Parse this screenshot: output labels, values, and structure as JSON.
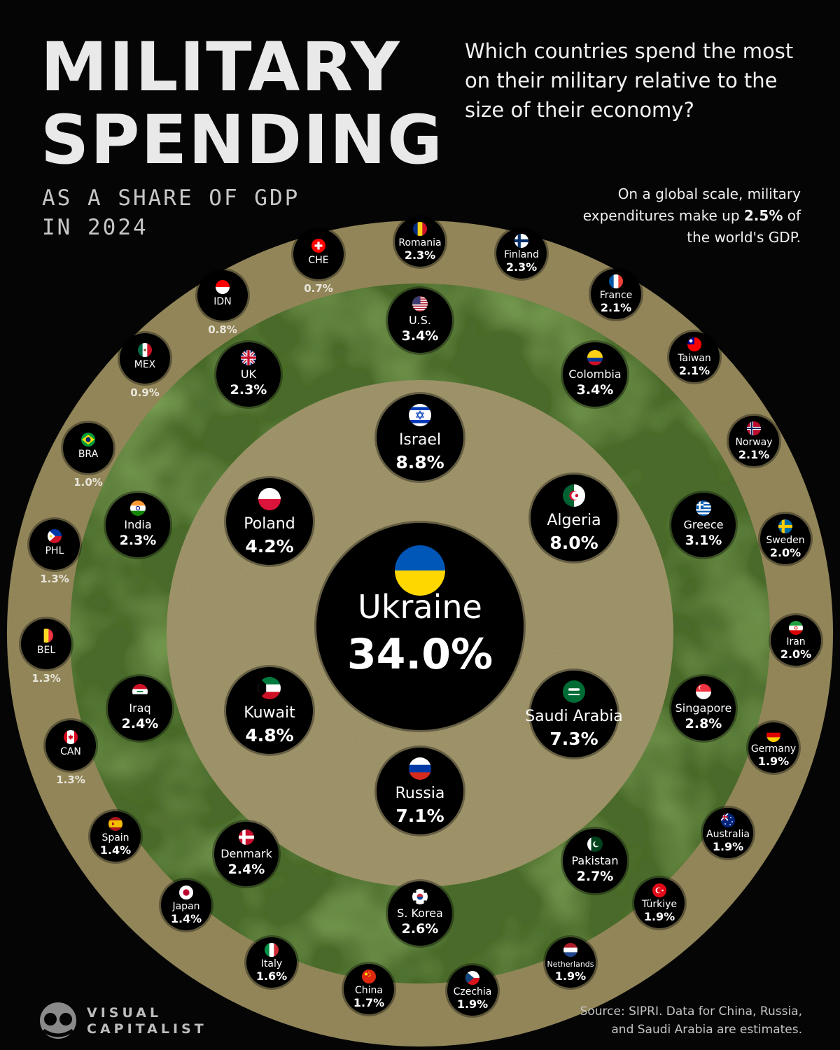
{
  "header": {
    "title_line1": "MILITARY",
    "title_line2": "SPENDING",
    "subtitle_line1": "AS A SHARE OF GDP",
    "subtitle_line2": "IN 2024",
    "question": "Which countries spend the most on their military relative to the size of their economy?",
    "note_prefix": "On a global scale, military expenditures make up",
    "note_value": "2.5%",
    "note_suffix": "of the world's GDP."
  },
  "footer": {
    "logo_line1": "VISUAL",
    "logo_line2": "CAPITALIST",
    "source_line1": "Source: SIPRI. Data for China, Russia,",
    "source_line2": "and Saudi Arabia are estimates."
  },
  "colors": {
    "background": "#050505",
    "outer_ring": "#9a8d5f",
    "middle_ring": "#4a6a2a",
    "inner_ring": "#a59a6e",
    "bubble": "#000000",
    "text": "#ffffff"
  },
  "chart_data": {
    "type": "bubble",
    "title": "MILITARY SPENDING AS A SHARE OF GDP IN 2024",
    "unit": "% of GDP",
    "global_average": 2.5,
    "rings": [
      "under 2.0%",
      "2.0% to 4.9%",
      "5% and above"
    ],
    "countries": [
      {
        "name": "Ukraine",
        "value": 34.0,
        "label": "34.0%",
        "tier": "center",
        "flag": "ukraine"
      },
      {
        "name": "Israel",
        "value": 8.8,
        "label": "8.8%",
        "tier": "inner",
        "flag": "israel"
      },
      {
        "name": "Algeria",
        "value": 8.0,
        "label": "8.0%",
        "tier": "inner",
        "flag": "algeria"
      },
      {
        "name": "Saudi Arabia",
        "value": 7.3,
        "label": "7.3%",
        "tier": "inner",
        "flag": "saudi"
      },
      {
        "name": "Russia",
        "value": 7.1,
        "label": "7.1%",
        "tier": "inner",
        "flag": "russia"
      },
      {
        "name": "Kuwait",
        "value": 4.8,
        "label": "4.8%",
        "tier": "inner",
        "flag": "kuwait"
      },
      {
        "name": "Poland",
        "value": 4.2,
        "label": "4.2%",
        "tier": "inner",
        "flag": "poland"
      },
      {
        "name": "U.S.",
        "value": 3.4,
        "label": "3.4%",
        "tier": "middle",
        "flag": "us"
      },
      {
        "name": "Colombia",
        "value": 3.4,
        "label": "3.4%",
        "tier": "middle",
        "flag": "colombia"
      },
      {
        "name": "Greece",
        "value": 3.1,
        "label": "3.1%",
        "tier": "middle",
        "flag": "greece"
      },
      {
        "name": "Singapore",
        "value": 2.8,
        "label": "2.8%",
        "tier": "middle",
        "flag": "singapore"
      },
      {
        "name": "Pakistan",
        "value": 2.7,
        "label": "2.7%",
        "tier": "middle",
        "flag": "pakistan"
      },
      {
        "name": "S. Korea",
        "value": 2.6,
        "label": "2.6%",
        "tier": "middle",
        "flag": "skorea"
      },
      {
        "name": "Denmark",
        "value": 2.4,
        "label": "2.4%",
        "tier": "middle",
        "flag": "denmark"
      },
      {
        "name": "Iraq",
        "value": 2.4,
        "label": "2.4%",
        "tier": "middle",
        "flag": "iraq"
      },
      {
        "name": "India",
        "value": 2.3,
        "label": "2.3%",
        "tier": "middle",
        "flag": "india"
      },
      {
        "name": "UK",
        "value": 2.3,
        "label": "2.3%",
        "tier": "middle",
        "flag": "uk"
      },
      {
        "name": "Romania",
        "value": 2.3,
        "label": "2.3%",
        "tier": "outer",
        "flag": "romania"
      },
      {
        "name": "Finland",
        "value": 2.3,
        "label": "2.3%",
        "tier": "outer",
        "flag": "finland"
      },
      {
        "name": "France",
        "value": 2.1,
        "label": "2.1%",
        "tier": "outer",
        "flag": "france"
      },
      {
        "name": "Taiwan",
        "value": 2.1,
        "label": "2.1%",
        "tier": "outer",
        "flag": "taiwan"
      },
      {
        "name": "Norway",
        "value": 2.1,
        "label": "2.1%",
        "tier": "outer",
        "flag": "norway"
      },
      {
        "name": "Sweden",
        "value": 2.0,
        "label": "2.0%",
        "tier": "outer",
        "flag": "sweden"
      },
      {
        "name": "Iran",
        "value": 2.0,
        "label": "2.0%",
        "tier": "outer",
        "flag": "iran"
      },
      {
        "name": "Germany",
        "value": 1.9,
        "label": "1.9%",
        "tier": "outer",
        "flag": "germany"
      },
      {
        "name": "Australia",
        "value": 1.9,
        "label": "1.9%",
        "tier": "outer",
        "flag": "australia"
      },
      {
        "name": "Türkiye",
        "value": 1.9,
        "label": "1.9%",
        "tier": "outer",
        "flag": "turkey"
      },
      {
        "name": "Netherlands",
        "value": 1.9,
        "label": "1.9%",
        "tier": "outer",
        "flag": "netherlands"
      },
      {
        "name": "Czechia",
        "value": 1.9,
        "label": "1.9%",
        "tier": "outer",
        "flag": "czechia"
      },
      {
        "name": "China",
        "value": 1.7,
        "label": "1.7%",
        "tier": "outer",
        "flag": "china"
      },
      {
        "name": "Italy",
        "value": 1.6,
        "label": "1.6%",
        "tier": "outer",
        "flag": "italy"
      },
      {
        "name": "Japan",
        "value": 1.4,
        "label": "1.4%",
        "tier": "outer",
        "flag": "japan"
      },
      {
        "name": "Spain",
        "value": 1.4,
        "label": "1.4%",
        "tier": "outer",
        "flag": "spain"
      },
      {
        "name": "CAN",
        "value": 1.3,
        "label": "1.3%",
        "tier": "outer",
        "flag": "canada"
      },
      {
        "name": "BEL",
        "value": 1.3,
        "label": "1.3%",
        "tier": "outer",
        "flag": "belgium"
      },
      {
        "name": "PHL",
        "value": 1.3,
        "label": "1.3%",
        "tier": "outer",
        "flag": "philippines"
      },
      {
        "name": "BRA",
        "value": 1.0,
        "label": "1.0%",
        "tier": "outer",
        "flag": "brazil"
      },
      {
        "name": "MEX",
        "value": 0.9,
        "label": "0.9%",
        "tier": "outer",
        "flag": "mexico"
      },
      {
        "name": "IDN",
        "value": 0.8,
        "label": "0.8%",
        "tier": "outer",
        "flag": "indonesia"
      },
      {
        "name": "CHE",
        "value": 0.7,
        "label": "0.7%",
        "tier": "outer",
        "flag": "switzerland"
      }
    ]
  }
}
